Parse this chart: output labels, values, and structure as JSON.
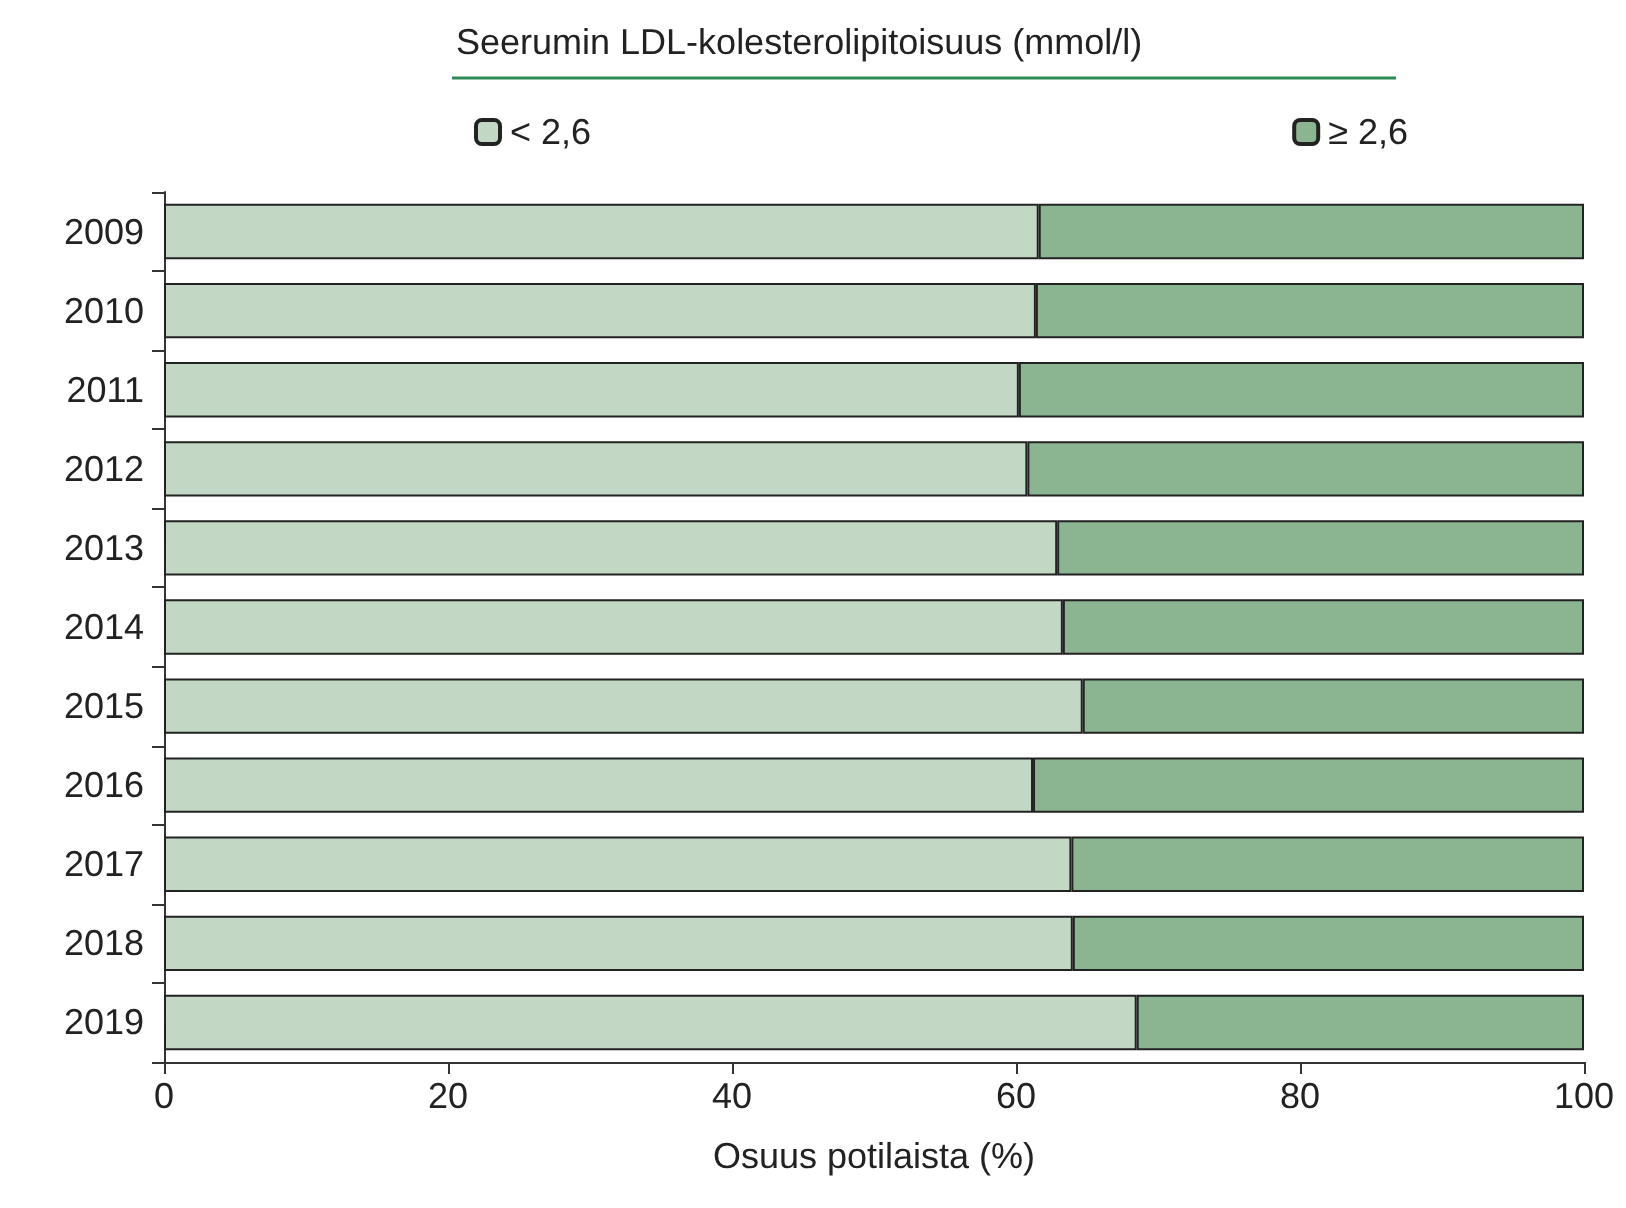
{
  "chart_data": {
    "type": "bar",
    "orientation": "horizontal",
    "stacked": true,
    "legend_title": "Seerumin LDL-kolesterolipitoisuus (mmol/l)",
    "xlabel": "Osuus potilaista (%)",
    "categories": [
      "2009",
      "2010",
      "2011",
      "2012",
      "2013",
      "2014",
      "2015",
      "2016",
      "2017",
      "2018",
      "2019"
    ],
    "series": [
      {
        "name": "< 2,6",
        "color": "#c2d8c4",
        "values": [
          61.6,
          61.4,
          60.2,
          60.8,
          62.9,
          63.3,
          64.7,
          61.2,
          63.9,
          64.0,
          68.5
        ]
      },
      {
        "name": "≥ 2,6",
        "color": "#8bb590",
        "values": [
          38.4,
          38.6,
          39.8,
          39.2,
          37.1,
          36.7,
          35.3,
          38.8,
          36.1,
          36.0,
          31.5
        ]
      }
    ],
    "xlim": [
      0,
      100
    ],
    "xticks": [
      0,
      20,
      40,
      60,
      80,
      100
    ],
    "grid": false,
    "legend": "top"
  }
}
